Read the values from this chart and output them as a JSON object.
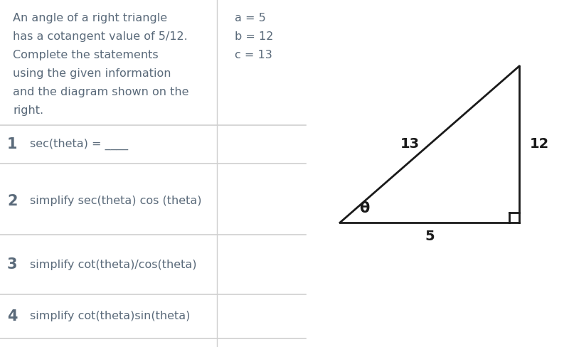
{
  "bg_color": "#ffffff",
  "title_text": [
    "An angle of a right triangle",
    "has a cotangent value of 5/12.",
    "Complete the statements",
    "using the given information",
    "and the diagram shown on the",
    "right."
  ],
  "values_text": [
    "a = 5",
    "b = 12",
    "c = 13"
  ],
  "questions": [
    {
      "num": "1",
      "text": "sec(theta) = ____"
    },
    {
      "num": "2",
      "text": "simplify sec(theta) cos (theta)"
    },
    {
      "num": "3",
      "text": "simplify cot(theta)/cos(theta)"
    },
    {
      "num": "4",
      "text": "simplify cot(theta)sin(theta)"
    }
  ],
  "text_color": "#5a6a7a",
  "line_color": "#d0d0d0",
  "triangle_color": "#1a1a1a",
  "font_size_body": 11.5,
  "font_size_qnum": 15,
  "font_size_tri": 14
}
